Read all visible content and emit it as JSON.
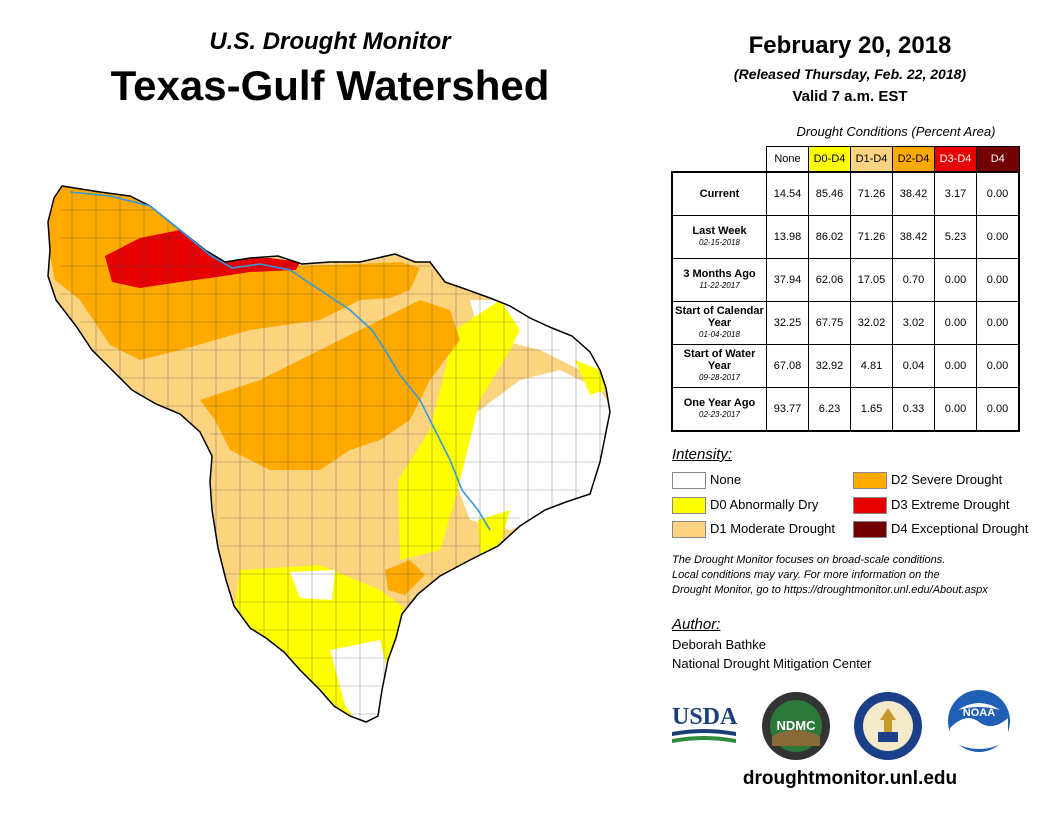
{
  "header": {
    "subtitle": "U.S. Drought Monitor",
    "title": "Texas-Gulf Watershed",
    "date": "February 20, 2018",
    "released": "(Released Thursday, Feb. 22, 2018)",
    "valid": "Valid 7 a.m. EST"
  },
  "table": {
    "caption": "Drought Conditions (Percent Area)",
    "columns": [
      "None",
      "D0-D4",
      "D1-D4",
      "D2-D4",
      "D3-D4",
      "D4"
    ],
    "column_colors": [
      "#ffffff",
      "#ffff00",
      "#fcd37f",
      "#ffaa00",
      "#e60000",
      "#730000"
    ],
    "column_text_colors": [
      "#000000",
      "#000000",
      "#000000",
      "#000000",
      "#ffffff",
      "#ffffff"
    ],
    "rows": [
      {
        "label": "Current",
        "date": "",
        "values": [
          "14.54",
          "85.46",
          "71.26",
          "38.42",
          "3.17",
          "0.00"
        ]
      },
      {
        "label": "Last Week",
        "date": "02-15-2018",
        "values": [
          "13.98",
          "86.02",
          "71.26",
          "38.42",
          "5.23",
          "0.00"
        ]
      },
      {
        "label": "3 Months Ago",
        "date": "11-22-2017",
        "values": [
          "37.94",
          "62.06",
          "17.05",
          "0.70",
          "0.00",
          "0.00"
        ]
      },
      {
        "label": "Start of Calendar Year",
        "date": "01-04-2018",
        "values": [
          "32.25",
          "67.75",
          "32.02",
          "3.02",
          "0.00",
          "0.00"
        ]
      },
      {
        "label": "Start of Water Year",
        "date": "09-28-2017",
        "values": [
          "67.08",
          "32.92",
          "4.81",
          "0.04",
          "0.00",
          "0.00"
        ]
      },
      {
        "label": "One Year Ago",
        "date": "02-23-2017",
        "values": [
          "93.77",
          "6.23",
          "1.65",
          "0.33",
          "0.00",
          "0.00"
        ]
      }
    ]
  },
  "legend": {
    "title": "Intensity:",
    "items": [
      {
        "label": "None",
        "color": "#ffffff"
      },
      {
        "label": "D0 Abnormally Dry",
        "color": "#ffff00"
      },
      {
        "label": "D1 Moderate Drought",
        "color": "#fcd37f"
      },
      {
        "label": "D2 Severe Drought",
        "color": "#ffaa00"
      },
      {
        "label": "D3 Extreme Drought",
        "color": "#e60000"
      },
      {
        "label": "D4 Exceptional Drought",
        "color": "#730000"
      }
    ]
  },
  "disclaimer": {
    "line1": "The Drought Monitor focuses on broad-scale conditions.",
    "line2": "Local conditions may vary. For more information on the",
    "line3": "Drought Monitor, go to https://droughtmonitor.unl.edu/About.aspx"
  },
  "author": {
    "title": "Author:",
    "name": "Deborah Bathke",
    "org": "National Drought Mitigation Center"
  },
  "logos": {
    "usda": "USDA",
    "ndmc": "NDMC",
    "noaa": "NOAA"
  },
  "footer": {
    "url": "droughtmonitor.unl.edu"
  },
  "map": {
    "name": "Texas-Gulf Watershed",
    "river_color": "#3399dd"
  }
}
